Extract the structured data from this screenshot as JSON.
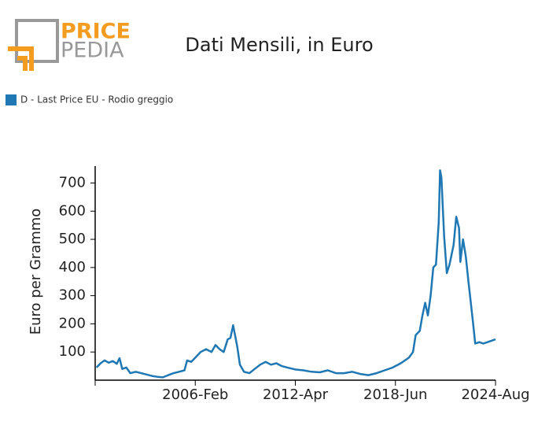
{
  "logo": {
    "top": "PRICE",
    "bottom": "PEDIA"
  },
  "chart_data": {
    "type": "line",
    "title": "Dati Mensili, in Euro",
    "ylabel": "Euro per Grammo",
    "x": [
      "2000-Jan",
      "2000-Apr",
      "2000-Jul",
      "2000-Oct",
      "2001-Jan",
      "2001-Apr",
      "2001-Jun",
      "2001-Aug",
      "2001-Nov",
      "2002-Feb",
      "2002-Jun",
      "2002-Oct",
      "2003-Feb",
      "2003-Jun",
      "2003-Oct",
      "2004-Feb",
      "2004-Jun",
      "2004-Oct",
      "2005-Feb",
      "2005-Jun",
      "2005-Aug",
      "2005-Nov",
      "2006-Feb",
      "2006-Jun",
      "2006-Oct",
      "2007-Feb",
      "2007-May",
      "2007-Aug",
      "2007-Nov",
      "2008-Feb",
      "2008-Apr",
      "2008-Jun",
      "2008-Sep",
      "2008-Nov",
      "2009-Feb",
      "2009-Jun",
      "2009-Oct",
      "2010-Feb",
      "2010-Jun",
      "2010-Oct",
      "2011-Feb",
      "2011-Jun",
      "2011-Oct",
      "2012-Apr",
      "2012-Oct",
      "2013-Apr",
      "2013-Oct",
      "2014-Apr",
      "2014-Oct",
      "2015-Apr",
      "2015-Oct",
      "2016-Apr",
      "2016-Oct",
      "2017-Apr",
      "2017-Oct",
      "2018-Apr",
      "2018-Oct",
      "2019-Apr",
      "2019-Jul",
      "2019-Sep",
      "2019-Dec",
      "2020-Feb",
      "2020-Apr",
      "2020-Jun",
      "2020-Aug",
      "2020-Oct",
      "2020-Dec",
      "2021-Feb",
      "2021-Mar",
      "2021-Apr",
      "2021-Jun",
      "2021-Aug",
      "2021-Oct",
      "2022-Jan",
      "2022-Mar",
      "2022-May",
      "2022-Jun",
      "2022-Aug",
      "2022-Oct",
      "2022-Dec",
      "2023-Mar",
      "2023-May",
      "2023-Aug",
      "2023-Nov",
      "2024-Feb",
      "2024-May",
      "2024-Aug"
    ],
    "series": [
      {
        "name": "D - Last Price EU - Rodio greggio",
        "color": "#1f77b4",
        "values": [
          45,
          60,
          70,
          62,
          68,
          58,
          78,
          40,
          45,
          25,
          30,
          25,
          20,
          15,
          12,
          10,
          18,
          25,
          30,
          35,
          70,
          65,
          80,
          100,
          110,
          100,
          125,
          110,
          100,
          145,
          150,
          195,
          120,
          55,
          30,
          25,
          40,
          55,
          65,
          55,
          60,
          50,
          45,
          38,
          35,
          30,
          28,
          35,
          25,
          25,
          30,
          22,
          18,
          25,
          35,
          45,
          60,
          80,
          100,
          160,
          175,
          230,
          275,
          230,
          300,
          400,
          410,
          560,
          745,
          720,
          510,
          380,
          410,
          480,
          580,
          540,
          420,
          500,
          440,
          350,
          220,
          130,
          135,
          130,
          135,
          140,
          145
        ]
      }
    ],
    "xlim": [
      "1999-Dec",
      "2024-Aug"
    ],
    "xticks": [
      "2006-Feb",
      "2012-Apr",
      "2018-Jun",
      "2024-Aug"
    ],
    "ylim": [
      0,
      760
    ],
    "yticks": [
      100,
      200,
      300,
      400,
      500,
      600,
      700
    ]
  }
}
